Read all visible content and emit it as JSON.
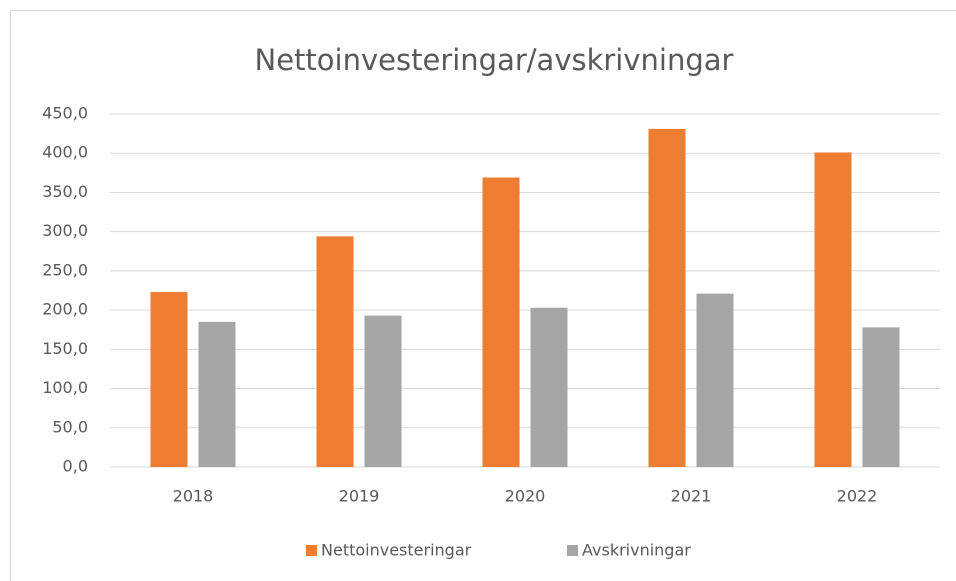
{
  "chart_data": {
    "type": "bar",
    "title": "Nettoinvesteringar/avskrivningar",
    "categories": [
      "2018",
      "2019",
      "2020",
      "2021",
      "2022"
    ],
    "series": [
      {
        "name": "Nettoinvesteringar",
        "color": "#ed7d31",
        "values": [
          223,
          294,
          369,
          431,
          401
        ]
      },
      {
        "name": "Avskrivningar",
        "color": "#a5a5a5",
        "values": [
          185,
          193,
          203,
          221,
          178
        ]
      }
    ],
    "ylim": [
      0,
      450
    ],
    "yticks": [
      {
        "value": 0,
        "label": "0,0"
      },
      {
        "value": 50,
        "label": "50,0"
      },
      {
        "value": 100,
        "label": "100,0"
      },
      {
        "value": 150,
        "label": "150,0"
      },
      {
        "value": 200,
        "label": "200,0"
      },
      {
        "value": 250,
        "label": "250,0"
      },
      {
        "value": 300,
        "label": "300,0"
      },
      {
        "value": 350,
        "label": "350,0"
      },
      {
        "value": 400,
        "label": "400,0"
      },
      {
        "value": 450,
        "label": "450,0"
      }
    ],
    "grid": true,
    "legend": "bottom"
  }
}
